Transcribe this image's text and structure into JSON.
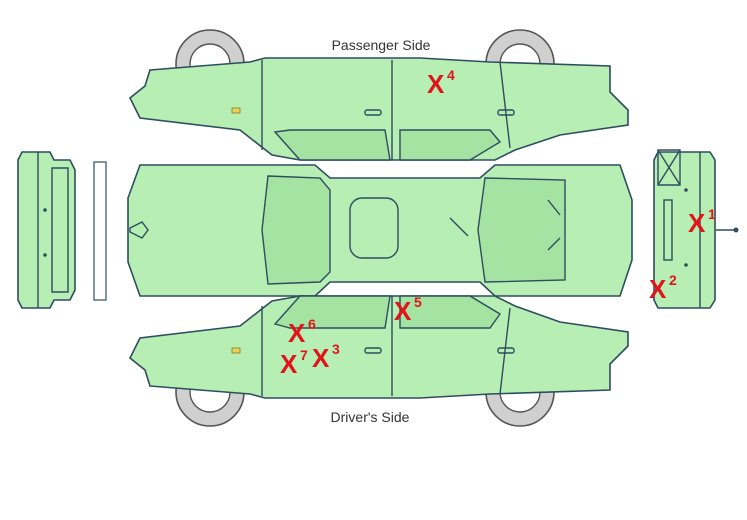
{
  "labels": {
    "passenger_side": "Passenger Side",
    "drivers_side": "Driver's Side"
  },
  "damage_marks": [
    {
      "letter": "X",
      "number": "1"
    },
    {
      "letter": "X",
      "number": "2"
    },
    {
      "letter": "X",
      "number": "3"
    },
    {
      "letter": "X",
      "number": "4"
    },
    {
      "letter": "X",
      "number": "5"
    },
    {
      "letter": "X",
      "number": "6"
    },
    {
      "letter": "X",
      "number": "7"
    }
  ],
  "colors": {
    "car_fill": "#b7eeb4",
    "outline": "#2e4d5e",
    "mark": "#e0141a"
  }
}
